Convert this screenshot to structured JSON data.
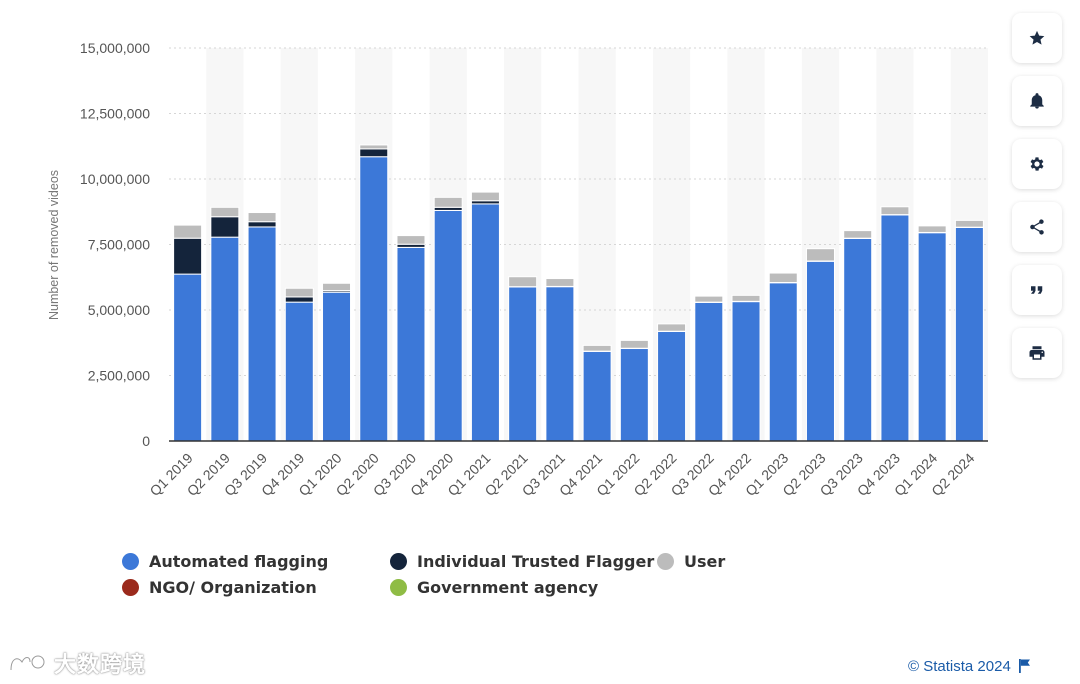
{
  "chart_data": {
    "type": "bar",
    "stacked": true,
    "categories": [
      "Q1 2019",
      "Q2 2019",
      "Q3 2019",
      "Q4 2019",
      "Q1 2020",
      "Q2 2020",
      "Q3 2020",
      "Q4 2020",
      "Q1 2021",
      "Q2 2021",
      "Q3 2021",
      "Q4 2021",
      "Q1 2022",
      "Q2 2022",
      "Q3 2022",
      "Q4 2022",
      "Q1 2023",
      "Q2 2023",
      "Q3 2023",
      "Q4 2023",
      "Q1 2024",
      "Q2 2024"
    ],
    "series": [
      {
        "name": "Automated flagging",
        "color": "#3c78d8",
        "values": [
          6370000,
          7780000,
          8170000,
          5300000,
          5680000,
          10850000,
          7390000,
          8800000,
          9050000,
          5880000,
          5890000,
          3420000,
          3530000,
          4180000,
          5290000,
          5320000,
          6040000,
          6860000,
          7730000,
          8630000,
          7950000,
          8150000
        ]
      },
      {
        "name": "Individual Trusted Flagger",
        "color": "#14243b",
        "values": [
          1370000,
          780000,
          200000,
          200000,
          60000,
          300000,
          120000,
          120000,
          120000,
          10000,
          10000,
          10000,
          10000,
          10000,
          10000,
          10000,
          10000,
          10000,
          10000,
          10000,
          10000,
          10000
        ]
      },
      {
        "name": "User",
        "color": "#bcbcbc",
        "values": [
          500000,
          360000,
          350000,
          330000,
          280000,
          150000,
          330000,
          380000,
          330000,
          380000,
          300000,
          220000,
          300000,
          280000,
          230000,
          230000,
          360000,
          470000,
          290000,
          300000,
          250000,
          260000
        ]
      },
      {
        "name": "NGO/ Organization",
        "color": "#9b2a1c",
        "values": [
          0,
          0,
          0,
          0,
          0,
          0,
          0,
          0,
          0,
          0,
          0,
          0,
          0,
          0,
          0,
          0,
          0,
          0,
          0,
          0,
          0,
          0
        ]
      },
      {
        "name": "Government agency",
        "color": "#8fbc45",
        "values": [
          0,
          0,
          0,
          0,
          0,
          0,
          0,
          0,
          0,
          0,
          0,
          0,
          0,
          0,
          0,
          0,
          0,
          0,
          0,
          0,
          0,
          0
        ]
      }
    ],
    "ylabel": "Number of removed videos",
    "ylim": [
      0,
      15000000
    ],
    "yticks": [
      0,
      2500000,
      5000000,
      7500000,
      10000000,
      12500000,
      15000000
    ],
    "ytick_labels": [
      "0",
      "2,500,000",
      "5,000,000",
      "7,500,000",
      "10,000,000",
      "12,500,000",
      "15,000,000"
    ],
    "grid": true,
    "legend_position": "bottom-left"
  },
  "legend": {
    "items": [
      {
        "label": "Automated flagging",
        "color": "#3c78d8"
      },
      {
        "label": "Individual Trusted Flagger",
        "color": "#14243b"
      },
      {
        "label": "User",
        "color": "#bcbcbc"
      },
      {
        "label": "NGO/ Organization",
        "color": "#9b2a1c"
      },
      {
        "label": "Government agency",
        "color": "#8fbc45"
      }
    ]
  },
  "toolbar": {
    "buttons": [
      {
        "name": "favorite",
        "icon": "star-icon"
      },
      {
        "name": "notification",
        "icon": "bell-icon"
      },
      {
        "name": "settings",
        "icon": "gear-icon"
      },
      {
        "name": "share",
        "icon": "share-icon"
      },
      {
        "name": "cite",
        "icon": "quote-icon"
      },
      {
        "name": "print",
        "icon": "printer-icon"
      }
    ]
  },
  "footer": {
    "credit": "© Statista 2024",
    "watermark": "大数跨境"
  }
}
